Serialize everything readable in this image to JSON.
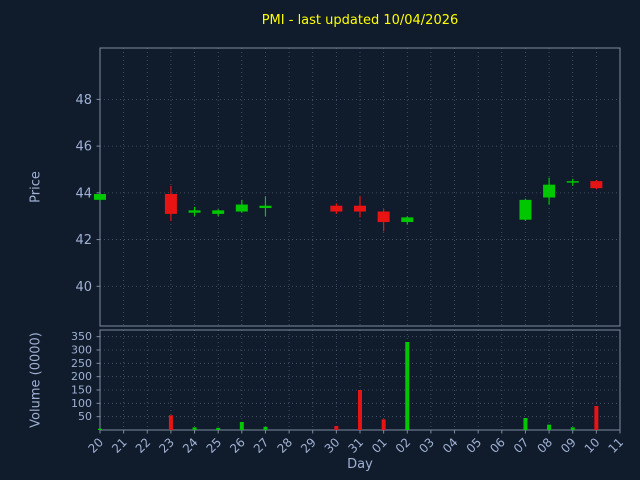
{
  "chart_data": {
    "type": "candlestick",
    "title": "PMI - last updated 10/04/2026",
    "xlabel": "Day",
    "price_ylabel": "Price",
    "volume_ylabel": "Volume (0000)",
    "x_categories": [
      "20",
      "21",
      "22",
      "23",
      "24",
      "25",
      "26",
      "27",
      "28",
      "29",
      "30",
      "31",
      "01",
      "02",
      "03",
      "04",
      "05",
      "06",
      "07",
      "08",
      "09",
      "10",
      "11"
    ],
    "price_ylim": [
      38.3,
      50.2
    ],
    "price_yticks": [
      40,
      42,
      44,
      46,
      48
    ],
    "volume_ylim": [
      0,
      375
    ],
    "volume_yticks": [
      50,
      100,
      150,
      200,
      250,
      300,
      350
    ],
    "grid": "dotted",
    "legend": "none",
    "candles": [
      {
        "day": "20",
        "open": 43.7,
        "high": 43.95,
        "low": 43.65,
        "close": 43.95,
        "volume": 5
      },
      {
        "day": "23",
        "open": 43.95,
        "high": 44.3,
        "low": 42.8,
        "close": 43.1,
        "volume": 55
      },
      {
        "day": "24",
        "open": 43.15,
        "high": 43.4,
        "low": 43.0,
        "close": 43.25,
        "volume": 10
      },
      {
        "day": "25",
        "open": 43.1,
        "high": 43.3,
        "low": 43.0,
        "close": 43.25,
        "volume": 8
      },
      {
        "day": "26",
        "open": 43.2,
        "high": 43.7,
        "low": 43.15,
        "close": 43.5,
        "volume": 30
      },
      {
        "day": "27",
        "open": 43.35,
        "high": 43.85,
        "low": 43.0,
        "close": 43.45,
        "volume": 12
      },
      {
        "day": "30",
        "open": 43.45,
        "high": 43.55,
        "low": 43.1,
        "close": 43.2,
        "volume": 15
      },
      {
        "day": "31",
        "open": 43.45,
        "high": 43.85,
        "low": 42.95,
        "close": 43.2,
        "volume": 150
      },
      {
        "day": "01",
        "open": 43.2,
        "high": 43.3,
        "low": 42.35,
        "close": 42.75,
        "volume": 40
      },
      {
        "day": "02",
        "open": 42.75,
        "high": 43.0,
        "low": 42.65,
        "close": 42.95,
        "volume": 330
      },
      {
        "day": "07",
        "open": 42.85,
        "high": 43.75,
        "low": 42.8,
        "close": 43.7,
        "volume": 45
      },
      {
        "day": "08",
        "open": 43.8,
        "high": 44.65,
        "low": 43.5,
        "close": 44.35,
        "volume": 20
      },
      {
        "day": "09",
        "open": 44.45,
        "high": 44.6,
        "low": 44.3,
        "close": 44.5,
        "volume": 10
      },
      {
        "day": "10",
        "open": 44.5,
        "high": 44.55,
        "low": 44.15,
        "close": 44.2,
        "volume": 90
      }
    ],
    "colors": {
      "up": "#00c800",
      "down": "#e81414",
      "title": "#ffff00",
      "text": "#9fb0d2",
      "grid": "#4e5a70",
      "spine": "#7d8ca1",
      "background": "#101b2c"
    }
  }
}
